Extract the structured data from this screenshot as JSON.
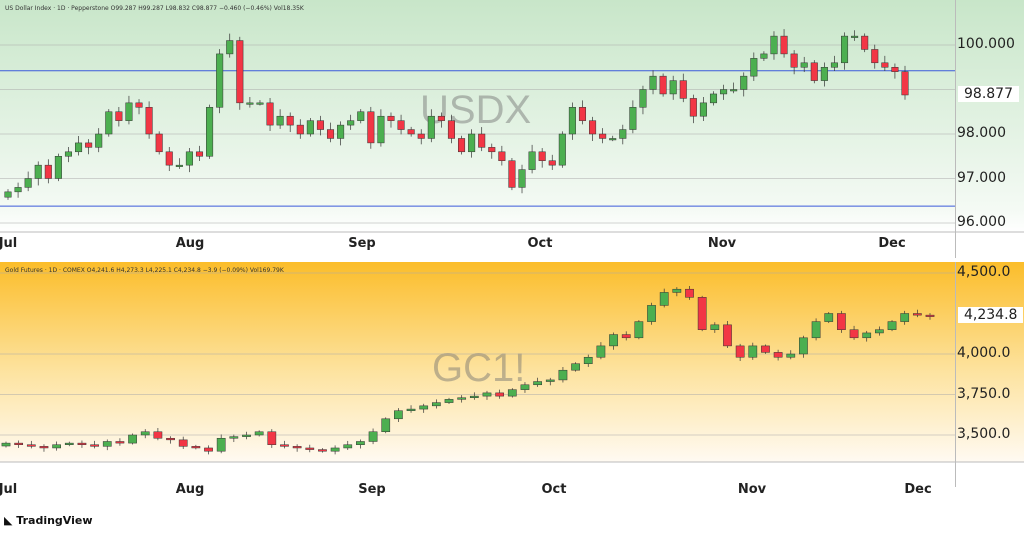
{
  "charts_header": {
    "usdx": "US Dollar Index · 1D · Pepperstone  O99.287  H99.287  L98.832  C98.877  −0.460 (−0.46%)  Vol18.35K",
    "gold": "Gold Futures · 1D · COMEX  O4,241.6  H4,273.3  L4,225.1  C4,234.8  −3.9 (−0.09%)  Vol169.79K"
  },
  "brand": "TradingView",
  "chart_data": [
    {
      "type": "candlestick",
      "watermark": "USDX",
      "ylim": [
        95.8,
        101.2
      ],
      "yticks": [
        "100.000",
        "98.000",
        "97.000",
        "96.000"
      ],
      "ytick_values": [
        100,
        98,
        97,
        96
      ],
      "last_price": "98.877",
      "horizontal_lines": [
        99.42,
        96.38
      ],
      "line_color": "#3b5bdb",
      "xticks": [
        "Jul",
        "Aug",
        "Sep",
        "Oct",
        "Nov",
        "Dec"
      ],
      "closes": [
        96.7,
        96.8,
        97.0,
        97.3,
        97.0,
        97.5,
        97.6,
        97.8,
        97.7,
        98.0,
        98.5,
        98.3,
        98.7,
        98.6,
        98.0,
        97.6,
        97.3,
        97.3,
        97.6,
        97.5,
        98.6,
        99.8,
        100.1,
        98.7,
        98.7,
        98.7,
        98.2,
        98.4,
        98.2,
        98.0,
        98.3,
        98.1,
        97.9,
        98.2,
        98.3,
        98.5,
        97.8,
        98.4,
        98.3,
        98.1,
        98.0,
        97.9,
        98.4,
        98.3,
        97.9,
        97.6,
        98.0,
        97.7,
        97.6,
        97.4,
        96.8,
        97.2,
        97.6,
        97.4,
        97.3,
        98.0,
        98.6,
        98.3,
        98.0,
        97.9,
        97.9,
        98.1,
        98.6,
        99.0,
        99.3,
        98.9,
        99.2,
        98.8,
        98.4,
        98.7,
        98.9,
        99.0,
        99.0,
        99.3,
        99.7,
        99.8,
        100.2,
        99.8,
        99.5,
        99.6,
        99.2,
        99.5,
        99.6,
        100.2,
        100.2,
        99.9,
        99.6,
        99.5,
        99.4,
        98.877
      ]
    },
    {
      "type": "candlestick",
      "watermark": "GC1!",
      "ylim": [
        3300,
        4560
      ],
      "yticks": [
        "4,500.0",
        "4,000.0",
        "3,750.0",
        "3,500.0"
      ],
      "ytick_values": [
        4500,
        4000,
        3750,
        3500
      ],
      "last_price": "4,234.8",
      "xticks": [
        "Jul",
        "Aug",
        "Sep",
        "Oct",
        "Nov",
        "Dec"
      ],
      "closes": [
        3450,
        3440,
        3430,
        3420,
        3440,
        3450,
        3440,
        3430,
        3460,
        3450,
        3500,
        3520,
        3480,
        3470,
        3430,
        3420,
        3400,
        3480,
        3490,
        3500,
        3520,
        3440,
        3430,
        3420,
        3410,
        3400,
        3420,
        3440,
        3460,
        3520,
        3600,
        3650,
        3660,
        3680,
        3700,
        3720,
        3730,
        3740,
        3760,
        3740,
        3780,
        3810,
        3830,
        3840,
        3900,
        3940,
        3980,
        4050,
        4120,
        4100,
        4200,
        4300,
        4380,
        4400,
        4350,
        4150,
        4180,
        4050,
        3980,
        4050,
        4010,
        3980,
        4000,
        4100,
        4200,
        4250,
        4150,
        4100,
        4130,
        4150,
        4200,
        4250,
        4240,
        4234.8
      ]
    }
  ]
}
